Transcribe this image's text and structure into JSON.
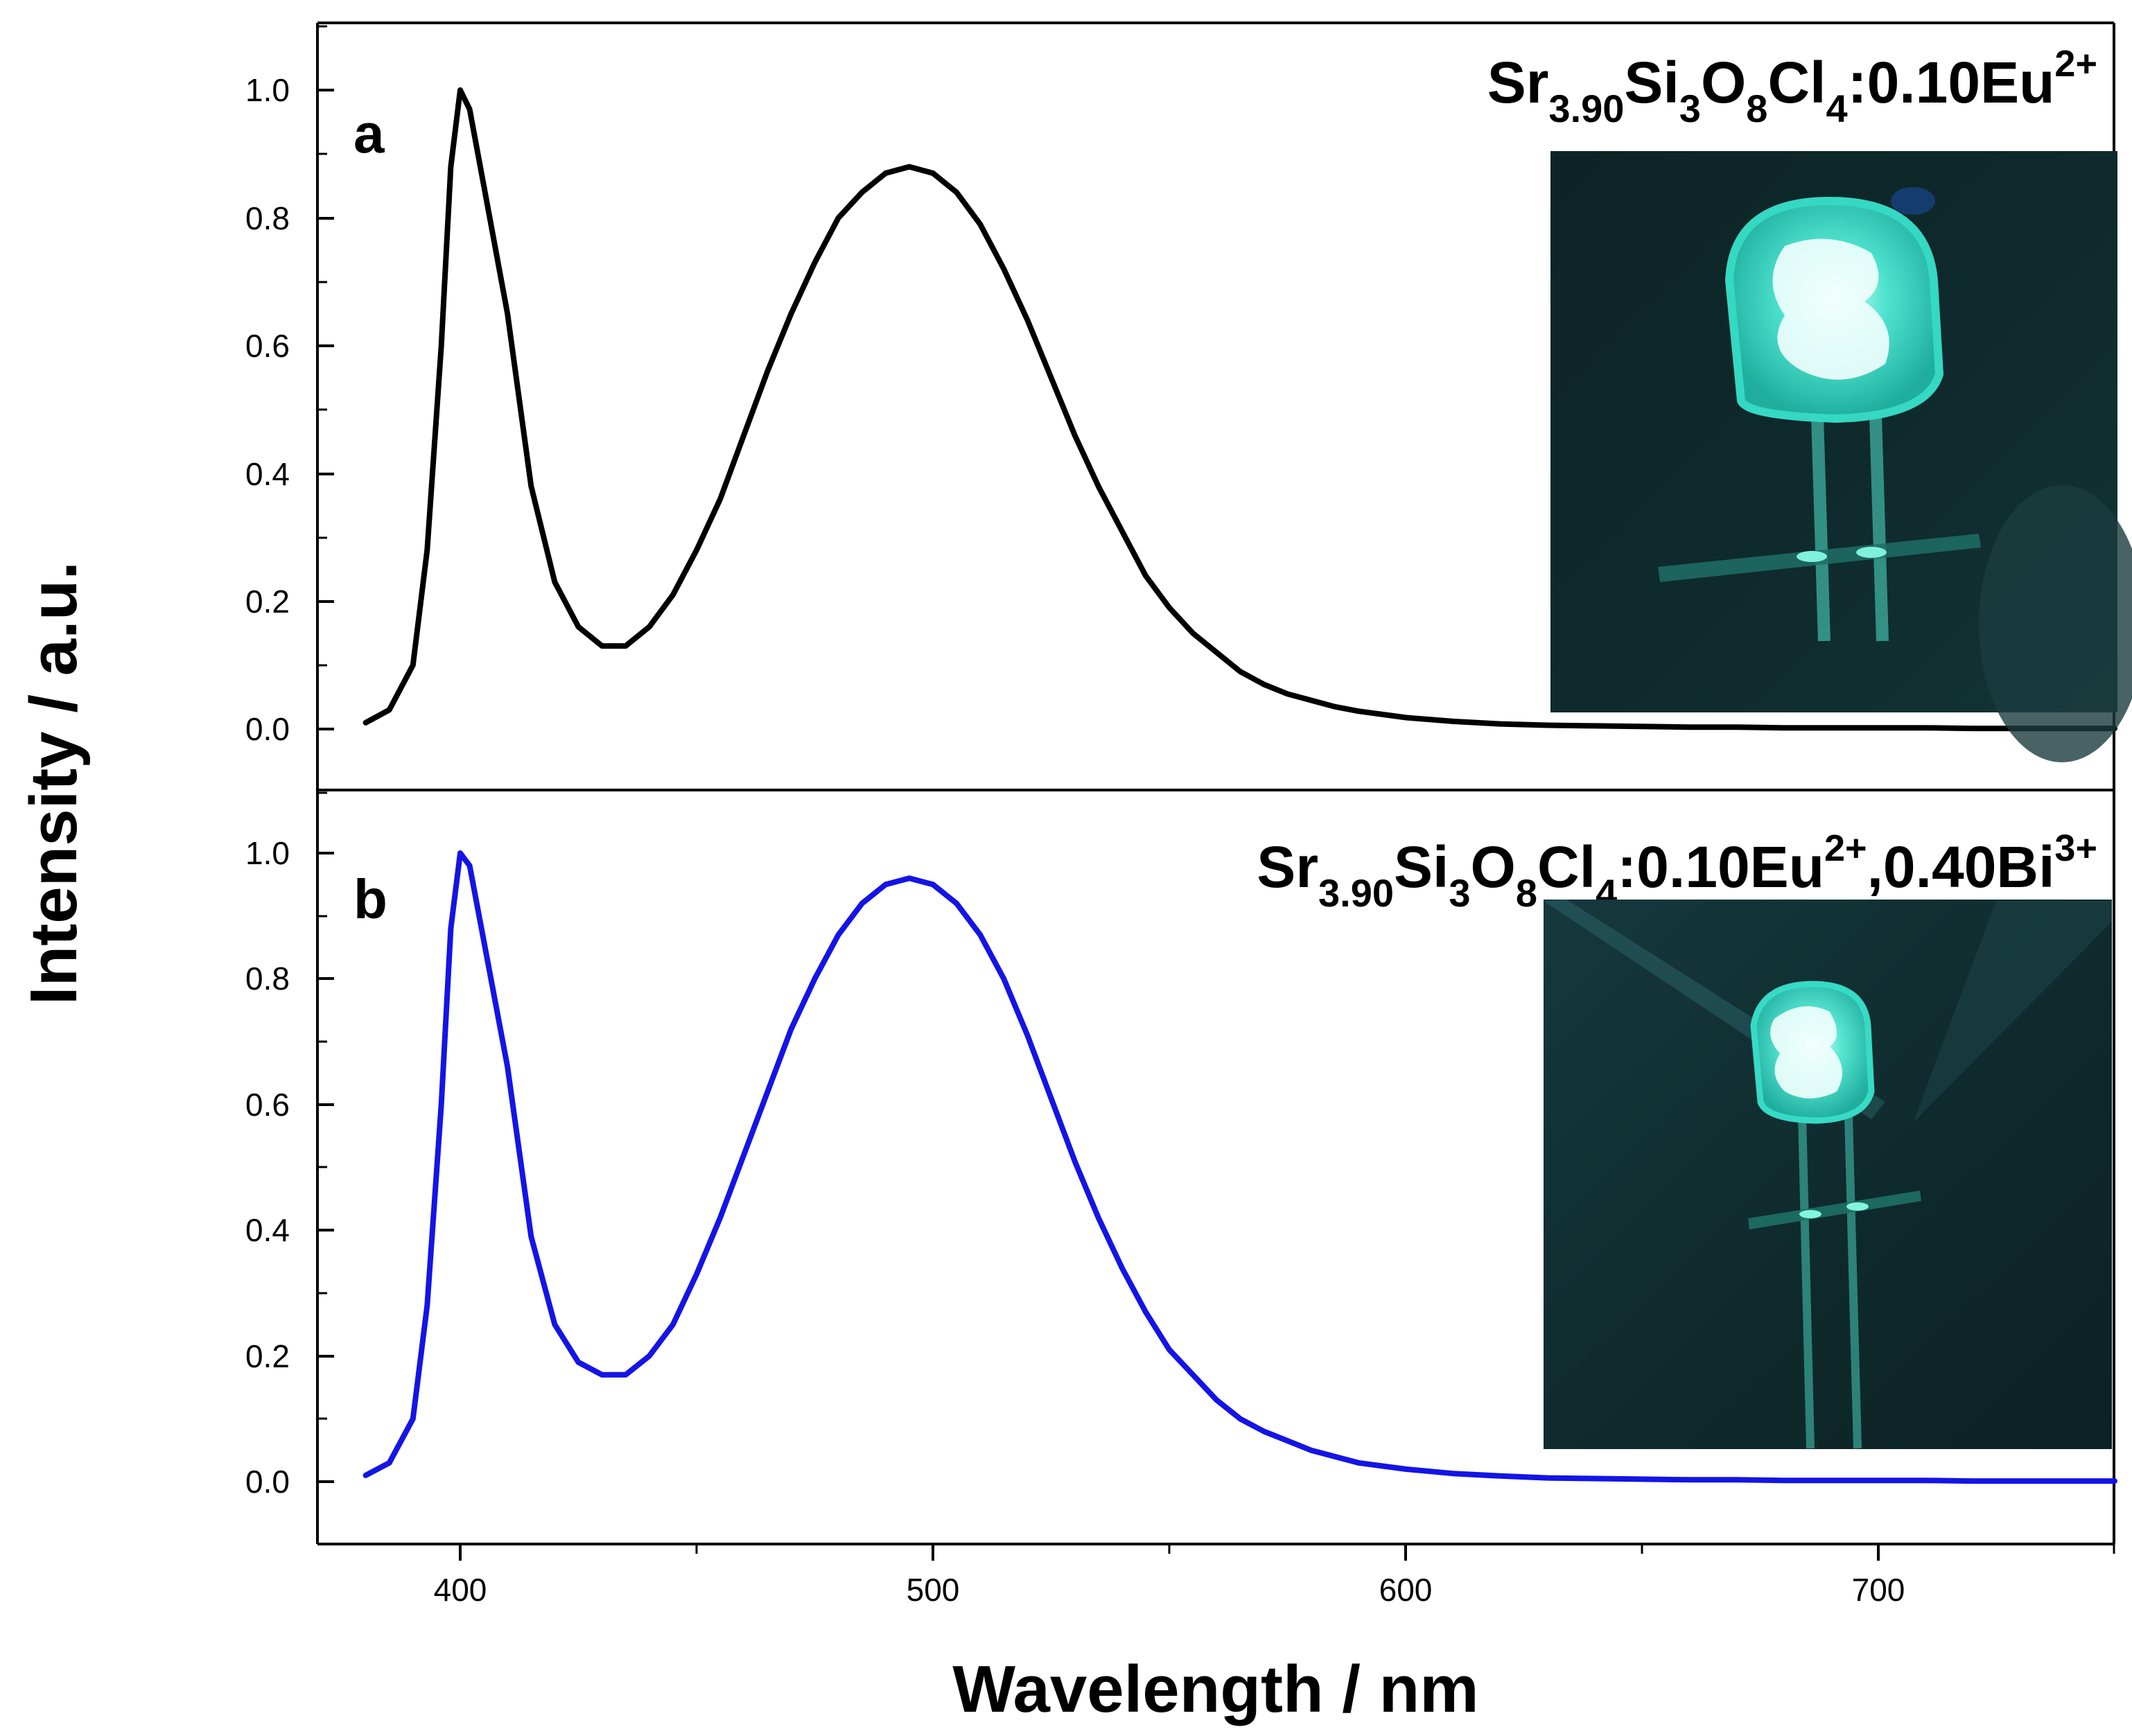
{
  "chart_data": [
    {
      "type": "line",
      "panel": "a",
      "title": "Sr3.90Si3O8Cl4:0.10Eu2+",
      "formula": [
        {
          "t": "Sr",
          "s": "base"
        },
        {
          "t": "3.90",
          "s": "sub"
        },
        {
          "t": "Si",
          "s": "base"
        },
        {
          "t": "3",
          "s": "sub"
        },
        {
          "t": "O",
          "s": "base"
        },
        {
          "t": "8",
          "s": "sub"
        },
        {
          "t": "Cl",
          "s": "base"
        },
        {
          "t": "4",
          "s": "sub"
        },
        {
          "t": ":0.10Eu",
          "s": "base"
        },
        {
          "t": "2+",
          "s": "sup"
        }
      ],
      "color": "#000000",
      "xlim": [
        370,
        750
      ],
      "ylim": [
        -0.1,
        1.1
      ],
      "yticks": [
        "0.0",
        "0.2",
        "0.4",
        "0.6",
        "0.8",
        "1.0"
      ],
      "inset": "photo of LED glowing cyan",
      "x": [
        380,
        385,
        390,
        393,
        396,
        398,
        400,
        402,
        405,
        410,
        415,
        420,
        425,
        430,
        435,
        440,
        445,
        450,
        455,
        460,
        465,
        470,
        475,
        480,
        485,
        490,
        495,
        500,
        505,
        510,
        515,
        520,
        525,
        530,
        535,
        540,
        545,
        550,
        555,
        560,
        565,
        570,
        575,
        580,
        585,
        590,
        600,
        610,
        620,
        630,
        640,
        650,
        660,
        670,
        680,
        690,
        700,
        710,
        720,
        730,
        740,
        750
      ],
      "y": [
        0.01,
        0.03,
        0.1,
        0.28,
        0.6,
        0.88,
        1.0,
        0.97,
        0.85,
        0.65,
        0.38,
        0.23,
        0.16,
        0.13,
        0.13,
        0.16,
        0.21,
        0.28,
        0.36,
        0.46,
        0.56,
        0.65,
        0.73,
        0.8,
        0.84,
        0.87,
        0.88,
        0.87,
        0.84,
        0.79,
        0.72,
        0.64,
        0.55,
        0.46,
        0.38,
        0.31,
        0.24,
        0.19,
        0.15,
        0.12,
        0.09,
        0.07,
        0.055,
        0.045,
        0.035,
        0.028,
        0.018,
        0.012,
        0.008,
        0.006,
        0.005,
        0.004,
        0.003,
        0.003,
        0.002,
        0.002,
        0.002,
        0.002,
        0.001,
        0.001,
        0.001,
        0.001
      ]
    },
    {
      "type": "line",
      "panel": "b",
      "title": "Sr3.90Si3O8Cl4:0.10Eu2+,0.40Bi3+",
      "formula": [
        {
          "t": "Sr",
          "s": "base"
        },
        {
          "t": "3.90",
          "s": "sub"
        },
        {
          "t": "Si",
          "s": "base"
        },
        {
          "t": "3",
          "s": "sub"
        },
        {
          "t": "O",
          "s": "base"
        },
        {
          "t": "8",
          "s": "sub"
        },
        {
          "t": "Cl",
          "s": "base"
        },
        {
          "t": "4",
          "s": "sub"
        },
        {
          "t": ":0.10Eu",
          "s": "base"
        },
        {
          "t": "2+",
          "s": "sup"
        },
        {
          "t": ",0.40Bi",
          "s": "base"
        },
        {
          "t": "3+",
          "s": "sup"
        }
      ],
      "color": "#1414e6",
      "xlim": [
        370,
        750
      ],
      "ylim": [
        -0.1,
        1.1
      ],
      "yticks": [
        "0.0",
        "0.2",
        "0.4",
        "0.6",
        "0.8",
        "1.0"
      ],
      "xticks": [
        "400",
        "500",
        "600",
        "700"
      ],
      "inset": "photo of LED glowing cyan",
      "x": [
        380,
        385,
        390,
        393,
        396,
        398,
        400,
        402,
        405,
        410,
        415,
        420,
        425,
        430,
        435,
        440,
        445,
        450,
        455,
        460,
        465,
        470,
        475,
        480,
        485,
        490,
        495,
        500,
        505,
        510,
        515,
        520,
        525,
        530,
        535,
        540,
        545,
        550,
        555,
        560,
        565,
        570,
        575,
        580,
        585,
        590,
        600,
        610,
        620,
        630,
        640,
        650,
        660,
        670,
        680,
        690,
        700,
        710,
        720,
        730,
        740,
        750
      ],
      "y": [
        0.01,
        0.03,
        0.1,
        0.28,
        0.6,
        0.88,
        1.0,
        0.98,
        0.86,
        0.66,
        0.39,
        0.25,
        0.19,
        0.17,
        0.17,
        0.2,
        0.25,
        0.33,
        0.42,
        0.52,
        0.62,
        0.72,
        0.8,
        0.87,
        0.92,
        0.95,
        0.96,
        0.95,
        0.92,
        0.87,
        0.8,
        0.71,
        0.61,
        0.51,
        0.42,
        0.34,
        0.27,
        0.21,
        0.17,
        0.13,
        0.1,
        0.08,
        0.065,
        0.05,
        0.04,
        0.03,
        0.02,
        0.013,
        0.009,
        0.006,
        0.005,
        0.004,
        0.003,
        0.003,
        0.002,
        0.002,
        0.002,
        0.002,
        0.001,
        0.001,
        0.001,
        0.001
      ]
    }
  ],
  "axes": {
    "ylabel": "Intensity / a.u.",
    "xlabel": "Wavelength / nm"
  }
}
